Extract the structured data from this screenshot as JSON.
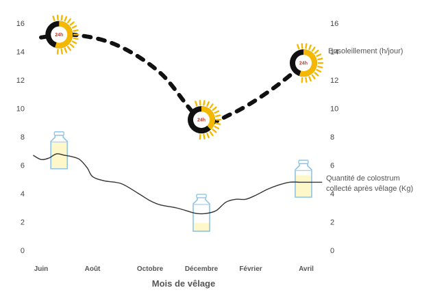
{
  "chart_data": {
    "type": "line",
    "title": "",
    "xlabel": "Mois de vêlage",
    "ylabel": "",
    "ylim": [
      0,
      16
    ],
    "yticks": [
      0,
      2,
      4,
      6,
      8,
      10,
      12,
      14,
      16
    ],
    "yticks_right": [
      0,
      2,
      4,
      6,
      8,
      10,
      12,
      14,
      16
    ],
    "grid": false,
    "categories": [
      "Juin",
      "Août",
      "Octobre",
      "Décembre",
      "Février",
      "Avril"
    ],
    "series": [
      {
        "name": "Ensoleillement (h/jour)",
        "style": "dotted",
        "color": "#111111",
        "x": [
          0,
          0.6,
          1.4,
          2.2,
          3.0,
          3.6,
          4.4,
          5.2
        ],
        "values": [
          15.0,
          15.2,
          14.5,
          12.5,
          9.2,
          9.6,
          11.4,
          13.9
        ]
      },
      {
        "name": "Quantité de colostrum collecté après vêlage (Kg)",
        "label_lines": [
          "Quantité de colostrum",
          "collecté après vêlage (Kg)"
        ],
        "style": "solid",
        "color": "#333333",
        "x": [
          -0.15,
          0,
          0.15,
          0.3,
          0.45,
          0.6,
          0.75,
          0.9,
          1.0,
          1.2,
          1.5,
          1.8,
          2.0,
          2.2,
          2.5,
          2.7,
          2.9,
          3.1,
          3.3,
          3.5,
          3.7,
          3.9,
          4.1,
          4.3,
          4.5,
          4.7,
          4.9,
          5.1,
          5.3
        ],
        "values": [
          6.7,
          6.4,
          6.5,
          6.8,
          6.7,
          6.6,
          6.4,
          5.8,
          5.2,
          4.9,
          4.7,
          4.0,
          3.5,
          3.2,
          3.0,
          2.8,
          2.6,
          2.6,
          2.8,
          3.4,
          3.6,
          3.6,
          3.9,
          4.3,
          4.6,
          4.8,
          4.8,
          4.8,
          4.8
        ]
      }
    ],
    "annotations": {
      "sun_label": "24h",
      "sun_points": [
        {
          "x": 0.35,
          "y": 15.2,
          "daylight_fraction": 0.55
        },
        {
          "x": 3.0,
          "y": 9.2,
          "daylight_fraction": 0.38
        },
        {
          "x": 4.95,
          "y": 13.2,
          "daylight_fraction": 0.55
        }
      ],
      "bottle_points": [
        {
          "x": 0.35,
          "y": 7.0,
          "fill_fraction": 0.95
        },
        {
          "x": 3.0,
          "y": 2.6,
          "fill_fraction": 0.3
        },
        {
          "x": 4.95,
          "y": 5.0,
          "fill_fraction": 0.8
        }
      ]
    }
  }
}
